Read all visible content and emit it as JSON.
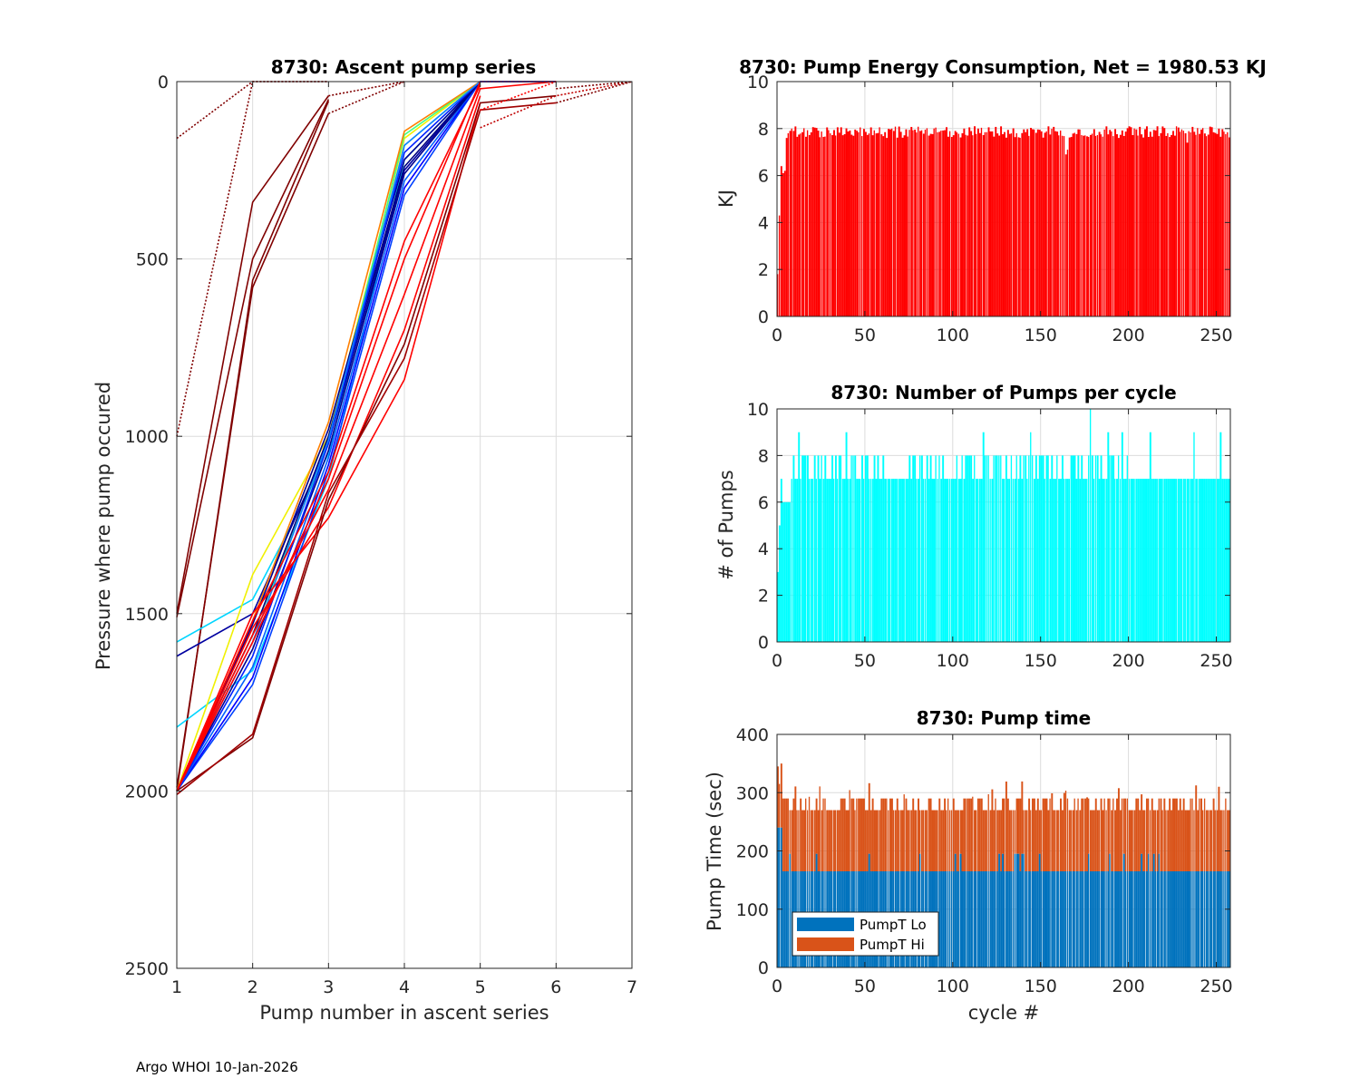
{
  "footer": "Argo WHOI 10-Jan-2026",
  "chart_data": [
    {
      "id": "ascent",
      "type": "line",
      "title": "8730: Ascent pump series",
      "xlabel": "Pump number in ascent series",
      "ylabel": "Pressure where pump occured",
      "xlim": [
        1,
        7
      ],
      "ylim": [
        0,
        2500
      ],
      "y_reversed": true,
      "xticks": [
        1,
        2,
        3,
        4,
        5,
        6,
        7
      ],
      "yticks": [
        0,
        500,
        1000,
        1500,
        2000,
        2500
      ],
      "grid": true,
      "colormap": "jet",
      "series": [
        {
          "name": "early-1",
          "color": "#800000",
          "style": "dotted",
          "x": [
            1,
            2,
            3
          ],
          "y": [
            160,
            0,
            0
          ]
        },
        {
          "name": "early-2",
          "color": "#800000",
          "style": "dotted",
          "x": [
            1,
            2,
            3
          ],
          "y": [
            1000,
            0,
            0
          ]
        },
        {
          "name": "early-3",
          "color": "#800000",
          "style": "solid",
          "x": [
            1,
            2,
            3
          ],
          "y": [
            1500,
            340,
            40
          ]
        },
        {
          "name": "early-4",
          "color": "#800000",
          "style": "solid",
          "x": [
            1,
            2,
            3
          ],
          "y": [
            1510,
            500,
            50
          ]
        },
        {
          "name": "early-5",
          "color": "#800000",
          "style": "solid",
          "x": [
            1,
            2,
            3
          ],
          "y": [
            2000,
            560,
            55
          ]
        },
        {
          "name": "early-6",
          "color": "#800000",
          "style": "solid",
          "x": [
            1,
            2,
            3
          ],
          "y": [
            1990,
            580,
            90
          ]
        },
        {
          "name": "early-top-1",
          "color": "#800000",
          "style": "dotted",
          "x": [
            3,
            4
          ],
          "y": [
            40,
            0
          ]
        },
        {
          "name": "early-top-2",
          "color": "#800000",
          "style": "dotted",
          "x": [
            3,
            4
          ],
          "y": [
            90,
            0
          ]
        },
        {
          "name": "cyan-a",
          "color": "#00d5ff",
          "style": "solid",
          "x": [
            1,
            2,
            3,
            4,
            5
          ],
          "y": [
            1580,
            1460,
            1050,
            180,
            0
          ]
        },
        {
          "name": "cyan-b",
          "color": "#00d5ff",
          "style": "solid",
          "x": [
            1,
            2,
            3,
            4,
            5
          ],
          "y": [
            1820,
            1660,
            1120,
            220,
            0
          ]
        },
        {
          "name": "navy-a",
          "color": "#0000a0",
          "style": "solid",
          "x": [
            1,
            2,
            3,
            4,
            5
          ],
          "y": [
            1620,
            1500,
            1020,
            250,
            0
          ]
        },
        {
          "name": "yellow",
          "color": "#f0f000",
          "style": "solid",
          "x": [
            1,
            2,
            3,
            4,
            5
          ],
          "y": [
            2000,
            1390,
            1000,
            160,
            0
          ]
        },
        {
          "name": "green",
          "color": "#40ff80",
          "style": "solid",
          "x": [
            1,
            2,
            3,
            4,
            5
          ],
          "y": [
            2000,
            1560,
            1020,
            150,
            0
          ]
        },
        {
          "name": "orange",
          "color": "#ff8000",
          "style": "solid",
          "x": [
            1,
            2,
            3,
            4,
            5
          ],
          "y": [
            2000,
            1520,
            960,
            140,
            0
          ]
        },
        {
          "name": "blue-1",
          "color": "#0040ff",
          "style": "solid",
          "x": [
            1,
            2,
            3,
            4,
            5,
            6
          ],
          "y": [
            2000,
            1700,
            1100,
            320,
            0,
            0
          ]
        },
        {
          "name": "blue-2",
          "color": "#0000ff",
          "style": "solid",
          "x": [
            1,
            2,
            3,
            4,
            5,
            6
          ],
          "y": [
            2000,
            1680,
            1080,
            300,
            0,
            0
          ]
        },
        {
          "name": "blue-3",
          "color": "#0060ff",
          "style": "solid",
          "x": [
            1,
            2,
            3,
            4,
            5,
            6
          ],
          "y": [
            2000,
            1650,
            1060,
            280,
            0,
            0
          ]
        },
        {
          "name": "navy-1",
          "color": "#00008f",
          "style": "solid",
          "x": [
            1,
            2,
            3,
            4,
            5
          ],
          "y": [
            2000,
            1600,
            1040,
            260,
            0
          ]
        },
        {
          "name": "navy-2",
          "color": "#000080",
          "style": "solid",
          "x": [
            1,
            2,
            3,
            4,
            5
          ],
          "y": [
            2000,
            1560,
            1000,
            240,
            0
          ]
        },
        {
          "name": "navy-3",
          "color": "#000090",
          "style": "solid",
          "x": [
            1,
            2,
            3,
            4,
            5
          ],
          "y": [
            2000,
            1530,
            980,
            220,
            0
          ]
        },
        {
          "name": "blue-4",
          "color": "#0020ff",
          "style": "solid",
          "x": [
            1,
            2,
            3,
            4,
            5
          ],
          "y": [
            2000,
            1620,
            1020,
            200,
            0
          ]
        },
        {
          "name": "blue-5",
          "color": "#1080ff",
          "style": "solid",
          "x": [
            1,
            2,
            3,
            4,
            5
          ],
          "y": [
            2000,
            1580,
            1010,
            180,
            0
          ]
        },
        {
          "name": "red-1",
          "color": "#ff0000",
          "style": "solid",
          "x": [
            1,
            2,
            3,
            4,
            5,
            6
          ],
          "y": [
            2000,
            1580,
            1120,
            500,
            0,
            0
          ]
        },
        {
          "name": "red-2",
          "color": "#ff0000",
          "style": "solid",
          "x": [
            1,
            2,
            3,
            4,
            5,
            6
          ],
          "y": [
            2000,
            1560,
            1150,
            600,
            20,
            0
          ]
        },
        {
          "name": "red-3",
          "color": "#ff0000",
          "style": "solid",
          "x": [
            1,
            2,
            3,
            4,
            5
          ],
          "y": [
            2000,
            1540,
            1200,
            700,
            40
          ]
        },
        {
          "name": "red-4",
          "color": "#ff0000",
          "style": "solid",
          "x": [
            1,
            2,
            3,
            4,
            5
          ],
          "y": [
            2000,
            1500,
            1230,
            840,
            60
          ]
        },
        {
          "name": "red-5",
          "color": "#ff0000",
          "style": "solid",
          "x": [
            1,
            2,
            3,
            4,
            5
          ],
          "y": [
            2000,
            1520,
            1100,
            450,
            10
          ]
        },
        {
          "name": "darkred-1",
          "color": "#800000",
          "style": "solid",
          "x": [
            1,
            2,
            3,
            4,
            5,
            6
          ],
          "y": [
            2000,
            1850,
            1180,
            740,
            60,
            40
          ]
        },
        {
          "name": "darkred-2",
          "color": "#a00000",
          "style": "solid",
          "x": [
            1,
            2,
            3,
            4,
            5,
            6
          ],
          "y": [
            2010,
            1840,
            1160,
            780,
            80,
            60
          ]
        },
        {
          "name": "top-blue-1",
          "color": "#0040ff",
          "style": "dotted",
          "x": [
            5,
            6
          ],
          "y": [
            0,
            0
          ]
        },
        {
          "name": "top-red-1",
          "color": "#ff0000",
          "style": "dotted",
          "x": [
            5,
            6
          ],
          "y": [
            80,
            0
          ]
        },
        {
          "name": "top-red-2",
          "color": "#c00000",
          "style": "dotted",
          "x": [
            5,
            6,
            7
          ],
          "y": [
            130,
            40,
            0
          ]
        },
        {
          "name": "top-darkred-1",
          "color": "#800000",
          "style": "dotted",
          "x": [
            6,
            7
          ],
          "y": [
            20,
            0
          ]
        },
        {
          "name": "top-darkred-2",
          "color": "#800000",
          "style": "dotted",
          "x": [
            6,
            7
          ],
          "y": [
            60,
            0
          ]
        }
      ]
    },
    {
      "id": "energy",
      "type": "bar",
      "title": "8730: Pump Energy Consumption,  Net = 1980.53 KJ",
      "xlabel": "",
      "ylabel": "KJ",
      "xlim": [
        0,
        258
      ],
      "ylim": [
        0,
        10
      ],
      "xticks": [
        0,
        50,
        100,
        150,
        200,
        250
      ],
      "yticks": [
        0,
        2,
        4,
        6,
        8,
        10
      ],
      "grid": true,
      "color": "#ff0000",
      "profile": {
        "n_cycles": 258,
        "first_values": [
          1.8,
          4.3,
          6.4,
          6.1,
          6.2,
          7.6,
          7.8,
          7.9,
          8.0,
          7.9
        ],
        "typical_range": [
          7.6,
          8.1
        ],
        "dip_cycles": {
          "164": 6.9,
          "165": 7.1,
          "233": 7.4
        }
      }
    },
    {
      "id": "npumps",
      "type": "bar",
      "title": "8730: Number of Pumps per cycle",
      "xlabel": "",
      "ylabel": "# of Pumps",
      "xlim": [
        0,
        258
      ],
      "ylim": [
        0,
        10
      ],
      "xticks": [
        0,
        50,
        100,
        150,
        200,
        250
      ],
      "yticks": [
        0,
        2,
        4,
        6,
        8,
        10
      ],
      "grid": true,
      "color": "#00ffff",
      "profile": {
        "n_cycles": 258,
        "first_values": [
          3,
          5,
          7,
          6,
          6,
          6,
          6,
          6,
          7,
          8
        ],
        "typical_values": [
          7,
          8,
          9
        ],
        "max": 10,
        "max_cycle": 178
      }
    },
    {
      "id": "pumptime",
      "type": "bar",
      "stacked": true,
      "title": "8730: Pump time",
      "xlabel": "cycle #",
      "ylabel": "Pump Time (sec)",
      "xlim": [
        0,
        258
      ],
      "ylim": [
        0,
        400
      ],
      "xticks": [
        0,
        50,
        100,
        150,
        200,
        250
      ],
      "yticks": [
        0,
        100,
        200,
        300,
        400
      ],
      "grid": true,
      "legend": {
        "position": "bottom-left",
        "entries": [
          {
            "label": "PumpT Lo",
            "color": "#0072bd"
          },
          {
            "label": "PumpT Hi",
            "color": "#d95319"
          }
        ]
      },
      "profile": {
        "n_cycles": 258,
        "lo_typical": 165,
        "lo_alt": 195,
        "lo_first": 240,
        "total_typical": [
          270,
          290
        ],
        "total_first": [
          345,
          315,
          350
        ],
        "total_spikes_max": 320
      }
    }
  ]
}
